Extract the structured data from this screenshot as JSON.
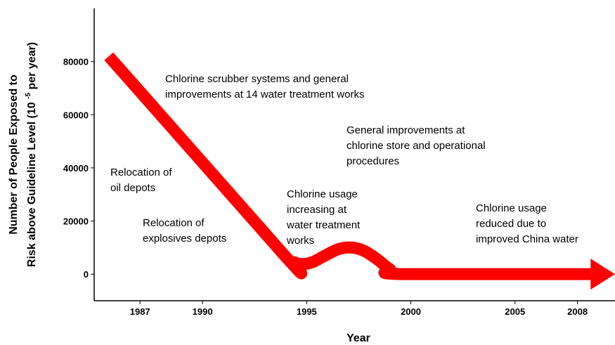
{
  "chart_data": {
    "type": "line",
    "x_label": "Year",
    "y_label": {
      "line1": "Number of People Exposed to",
      "line2_before": "Risk above Guideline Level (10 ",
      "line2_sup": "-5",
      "line2_after": " per year)"
    },
    "series": [
      {
        "color": "#ff0000",
        "x": [
          1985.5,
          1994,
          1994.4,
          1994.8,
          1995.3,
          1996,
          1996.6,
          1997.2,
          1997.8,
          1998.4,
          1999,
          1999.6,
          2008.9
        ],
        "values": [
          82000,
          6500,
          4500,
          3800,
          4600,
          7500,
          9600,
          10000,
          8600,
          5500,
          1800,
          0,
          0
        ]
      }
    ],
    "xlim": [
      1984.8,
      2009.8
    ],
    "ylim": [
      -10000,
      100000
    ],
    "xticks": [
      1987,
      1990,
      1995,
      2000,
      2005,
      2008
    ],
    "yticks": [
      0,
      20000,
      40000,
      60000,
      80000
    ],
    "annotations": [
      [
        "Chlorine scrubber systems and general",
        "improvements at 14 water treatment works"
      ],
      [
        "General improvements at",
        "chlorine store and operational",
        "procedures"
      ],
      [
        "Relocation of",
        "oil depots"
      ],
      [
        "Chlorine usage",
        "increasing at",
        "water treatment",
        "works"
      ],
      [
        "Relocation of",
        "explosives depots"
      ],
      [
        "Chlorine usage",
        "reduced due to",
        "improved China water"
      ]
    ]
  }
}
